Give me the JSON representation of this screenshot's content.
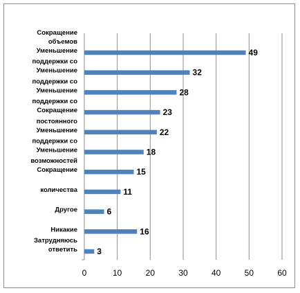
{
  "chart_data": {
    "type": "bar",
    "orientation": "horizontal",
    "categories": [
      [
        "Сокращение",
        "объемов",
        "Уменьшение"
      ],
      [
        "поддержки со",
        "Уменьшение"
      ],
      [
        "поддержки со",
        "Уменьшение"
      ],
      [
        "поддержки со",
        "Сокращение"
      ],
      [
        "постоянного",
        "Уменьшение"
      ],
      [
        "поддержки со",
        "Уменьшение"
      ],
      [
        "возможностей",
        "Сокращение"
      ],
      [
        "количества"
      ],
      [
        "Другое"
      ],
      [
        "Никакие"
      ],
      [
        "Затрудняюсь",
        "ответить"
      ]
    ],
    "values": [
      49,
      32,
      28,
      23,
      22,
      18,
      15,
      11,
      6,
      16,
      3
    ],
    "xlim": [
      0,
      60
    ],
    "xticks": [
      0,
      10,
      20,
      30,
      40,
      50,
      60
    ],
    "grid": "vertical",
    "legend": "none",
    "bar_color": "#4f81bd",
    "grid_color": "#8c8c8c"
  }
}
